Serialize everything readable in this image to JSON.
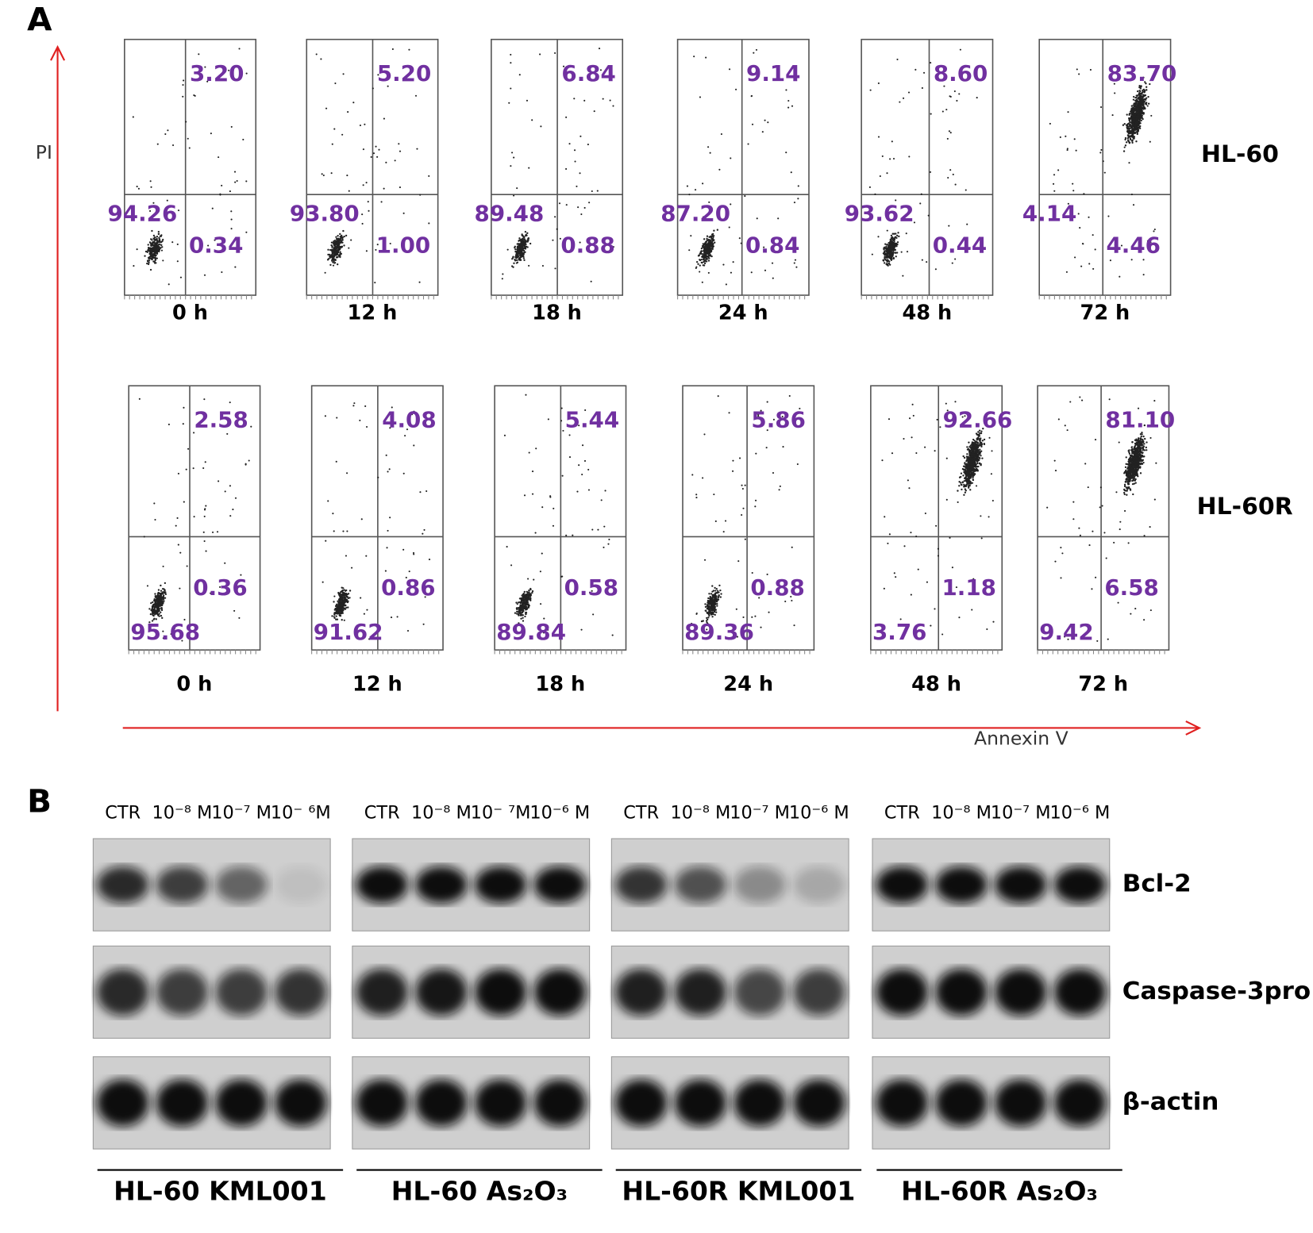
{
  "panel_a": {
    "label": "A",
    "y_axis_label": "PI",
    "x_axis_label": "Annexin V",
    "rows": [
      {
        "name": "HL-60",
        "plots": [
          {
            "time": "0 h",
            "upper_right": "3.20",
            "lower_left": "94.26",
            "lower_right": "0.34"
          },
          {
            "time": "12 h",
            "upper_right": "5.20",
            "lower_left": "93.80",
            "lower_right": "1.00"
          },
          {
            "time": "18 h",
            "upper_right": "6.84",
            "lower_left": "89.48",
            "lower_right": "0.88"
          },
          {
            "time": "24 h",
            "upper_right": "9.14",
            "lower_left": "87.20",
            "lower_right": "0.84"
          },
          {
            "time": "48 h",
            "upper_right": "8.60",
            "lower_left": "93.62",
            "lower_right": "0.44"
          },
          {
            "time": "72 h",
            "upper_right": "83.70",
            "lower_left": "4.14",
            "lower_right": "4.46"
          }
        ]
      },
      {
        "name": "HL-60R",
        "plots": [
          {
            "time": "0 h",
            "upper_right": "2.58",
            "lower_left": "95.68",
            "lower_right": "0.36"
          },
          {
            "time": "12 h",
            "upper_right": "4.08",
            "lower_left": "91.62",
            "lower_right": "0.86"
          },
          {
            "time": "18 h",
            "upper_right": "5.44",
            "lower_left": "89.84",
            "lower_right": "0.58"
          },
          {
            "time": "24 h",
            "upper_right": "5.86",
            "lower_left": "89.36",
            "lower_right": "0.88"
          },
          {
            "time": "48 h",
            "upper_right": "92.66",
            "lower_left": "3.76",
            "lower_right": "1.18"
          },
          {
            "time": "72 h",
            "upper_right": "81.10",
            "lower_left": "9.42",
            "lower_right": "6.58"
          }
        ]
      }
    ]
  },
  "panel_b": {
    "label": "B",
    "proteins": [
      "Bcl-2",
      "Caspase-3pro",
      "β-actin"
    ],
    "groups": [
      {
        "name": "HL-60 KML001",
        "lanes": [
          "CTR",
          "10⁻⁸ M",
          "10⁻⁷ M",
          "10⁻ ⁶M"
        ]
      },
      {
        "name": "HL-60 As₂O₃",
        "lanes": [
          "CTR",
          "10⁻⁸ M",
          "10⁻ ⁷M",
          "10⁻⁶ M"
        ]
      },
      {
        "name": "HL-60R KML001",
        "lanes": [
          "CTR",
          "10⁻⁸ M",
          "10⁻⁷ M",
          "10⁻⁶ M"
        ]
      },
      {
        "name": "HL-60R As₂O₃",
        "lanes": [
          "CTR",
          "10⁻⁸ M",
          "10⁻⁷ M",
          "10⁻⁶ M"
        ]
      }
    ]
  }
}
